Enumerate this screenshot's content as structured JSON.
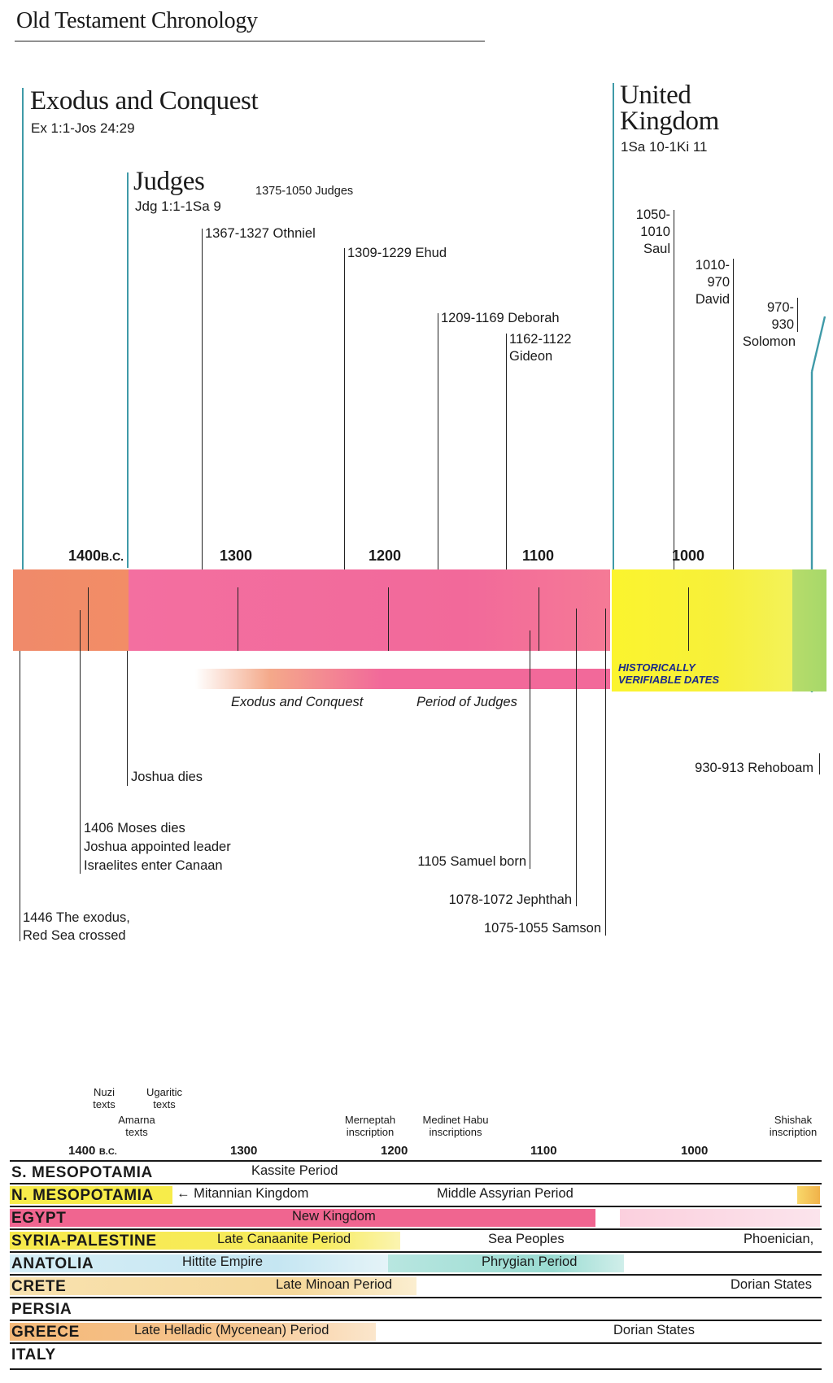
{
  "page_title": "Old Testament Chronology",
  "eras": {
    "exodus": {
      "title": "Exodus and Conquest",
      "ref": "Ex 1:1-Jos 24:29"
    },
    "judges": {
      "title": "Judges",
      "ref": "Jdg 1:1-1Sa 9",
      "span": "1375-1050 Judges"
    },
    "united": {
      "title_line1": "United",
      "title_line2": "Kingdom",
      "ref": "1Sa 10-1Ki 11"
    }
  },
  "events_above": {
    "othniel": "1367-1327 Othniel",
    "ehud": "1309-1229 Ehud",
    "deborah": "1209-1169 Deborah",
    "gideon_dates": "1162-1122",
    "gideon_name": "Gideon",
    "saul_l1": "1050-",
    "saul_l2": "1010",
    "saul_l3": "Saul",
    "david_l1": "1010-",
    "david_l2": "970",
    "david_l3": "David",
    "solomon_l1": "970-",
    "solomon_l2": "930",
    "solomon_l3": "Solomon"
  },
  "timeline": {
    "ticks": [
      {
        "year": "1400",
        "suffix": "B.C."
      },
      {
        "year": "1300",
        "suffix": ""
      },
      {
        "year": "1200",
        "suffix": ""
      },
      {
        "year": "1100",
        "suffix": ""
      },
      {
        "year": "1000",
        "suffix": ""
      }
    ],
    "period_exodus": "Exodus and Conquest",
    "period_judges": "Period of Judges",
    "historically_l1": "HISTORICALLY",
    "historically_l2": "VERIFIABLE DATES",
    "colors": {
      "exodus": "#f08a6a",
      "judges": "#f2699a",
      "united": "#f7f03a",
      "divided": "#a6d86a"
    }
  },
  "events_below": {
    "joshua_dies": "Joshua dies",
    "moses_l1": "1406 Moses dies",
    "moses_l2": "Joshua appointed leader",
    "moses_l3": "Israelites enter Canaan",
    "exodus_l1": "1446 The exodus,",
    "exodus_l2": "Red Sea crossed",
    "samuel": "1105  Samuel born",
    "jephthah": "1078-1072 Jephthah",
    "samson": "1075-1055 Samson",
    "rehoboam": "930-913 Rehoboam"
  },
  "annotations": {
    "nuzi": [
      "Nuzi",
      "texts"
    ],
    "ugaritic": [
      "Ugaritic",
      "texts"
    ],
    "amarna": [
      "Amarna",
      "texts"
    ],
    "merneptah": [
      "Merneptah",
      "inscription"
    ],
    "medinet": [
      "Medinet Habu",
      "inscriptions"
    ],
    "shishak": [
      "Shishak",
      "inscription"
    ]
  },
  "bottom_ticks": {
    "y1400": "1400",
    "bc": "B.C.",
    "y1300": "1300",
    "y1200": "1200",
    "y1100": "1100",
    "y1000": "1000"
  },
  "regions": [
    {
      "name": "S. MESOPOTAMIA",
      "cells": [
        "Kassite Period"
      ]
    },
    {
      "name": "N. MESOPOTAMIA",
      "cells": [
        "← Mitannian Kingdom",
        "Middle Assyrian Period"
      ]
    },
    {
      "name": "EGYPT",
      "cells": [
        "New Kingdom"
      ]
    },
    {
      "name": "SYRIA-PALESTINE",
      "cells": [
        "Late Canaanite Period",
        "Sea Peoples",
        "Phoenician,"
      ]
    },
    {
      "name": "ANATOLIA",
      "cells": [
        "Hittite Empire",
        "Phrygian Period"
      ]
    },
    {
      "name": "CRETE",
      "cells": [
        "Late Minoan Period",
        "Dorian States"
      ]
    },
    {
      "name": "PERSIA",
      "cells": []
    },
    {
      "name": "GREECE",
      "cells": [
        "Late Helladic (Mycenean) Period",
        "Dorian States"
      ]
    },
    {
      "name": "ITALY",
      "cells": []
    }
  ]
}
